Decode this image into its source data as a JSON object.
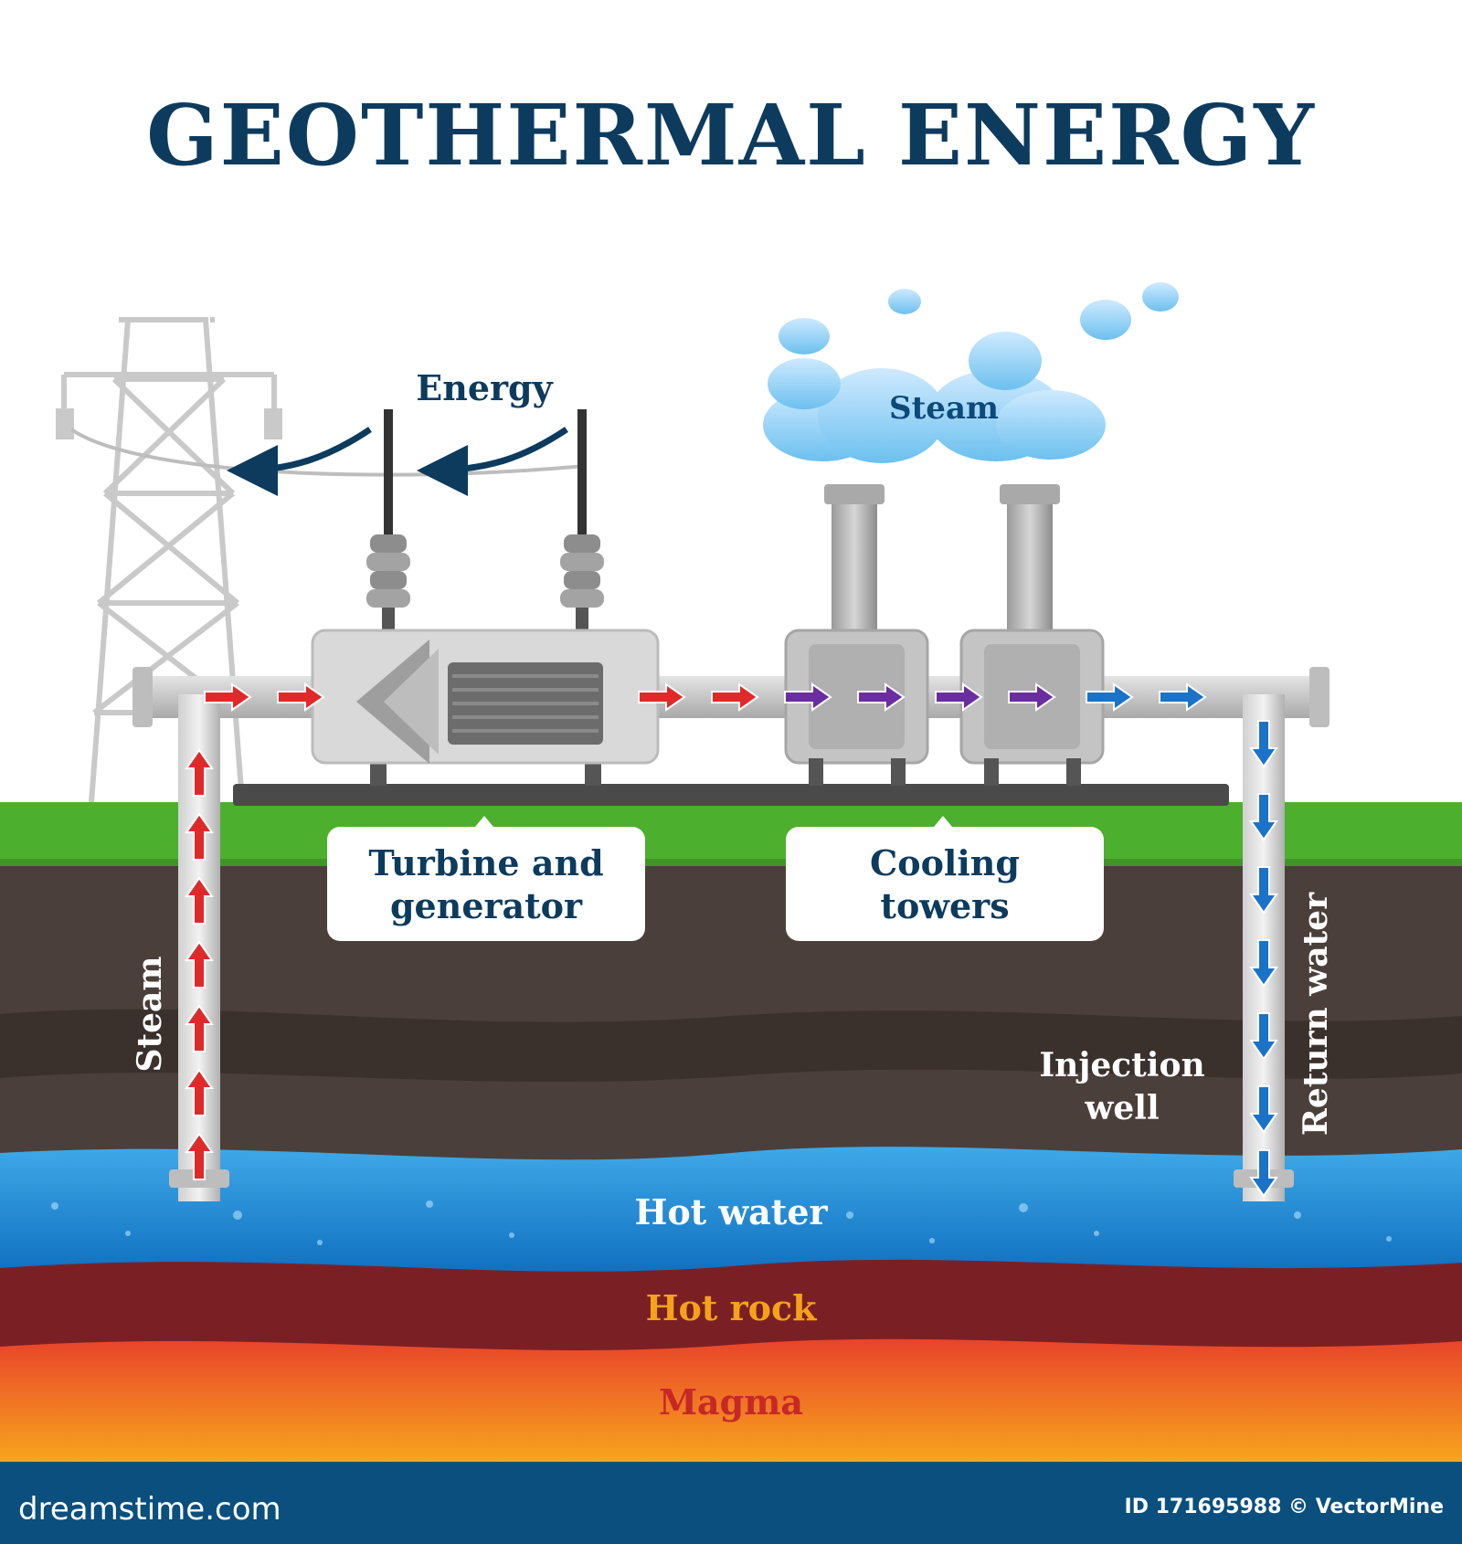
{
  "title": "GEOTHERMAL ENERGY",
  "labels": {
    "energy": "Energy",
    "steam_cloud": "Steam",
    "turbine_line1": "Turbine and",
    "turbine_line2": "generator",
    "cooling_line1": "Cooling",
    "cooling_line2": "towers",
    "steam_pipe": "Steam",
    "return_water": "Return water",
    "injection_line1": "Injection",
    "injection_line2": "well",
    "hot_water": "Hot water",
    "hot_rock": "Hot rock",
    "magma": "Magma"
  },
  "footer": {
    "site": "dreamstime.com",
    "credit": "ID 171695988 © VectorMine"
  },
  "colors": {
    "title": "#0d3b5e",
    "grass": "#4caf2e",
    "soil": "#4a3f3a",
    "water": "#1e88d4",
    "hot_rock": "#7a2025",
    "magma": "#f06a1c",
    "arrow_hot": "#e02a2a",
    "arrow_cool": "#6a2ea0",
    "arrow_return": "#1a73c8",
    "footer": "#0a4f7d"
  },
  "icons": [
    "transmission-tower",
    "power-line-arrow",
    "insulator",
    "turbine-generator",
    "cooling-tower",
    "steam-cloud",
    "flow-arrow"
  ]
}
